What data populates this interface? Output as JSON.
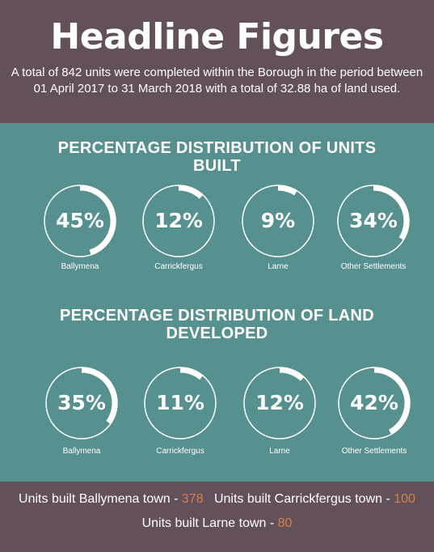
{
  "header": {
    "title": "Headline Figures",
    "summary": "A total of 842 units were completed within the Borough in the period between 01 April 2017 to 31 March 2018 with a total of 32.88 ha of land used."
  },
  "units_section": {
    "title": "PERCENTAGE DISTRIBUTION OF UNITS BUILT",
    "items": [
      {
        "label": "Ballymena",
        "value": 45,
        "text": "45%"
      },
      {
        "label": "Carrickfergus",
        "value": 12,
        "text": "12%"
      },
      {
        "label": "Larne",
        "value": 9,
        "text": "9%"
      },
      {
        "label": "Other Settlements",
        "value": 34,
        "text": "34%"
      }
    ]
  },
  "land_section": {
    "title": "PERCENTAGE DISTRIBUTION OF LAND DEVELOPED",
    "items": [
      {
        "label": "Ballymena",
        "value": 35,
        "text": "35%"
      },
      {
        "label": "Carrickfergus",
        "value": 11,
        "text": "11%"
      },
      {
        "label": "Larne",
        "value": 12,
        "text": "12%"
      },
      {
        "label": "Other Settlements",
        "value": 42,
        "text": "42%"
      }
    ]
  },
  "footer": {
    "ballymena_label": "Units built Ballymena town - ",
    "ballymena_value": "378",
    "carrick_label": "Units built Carrickfergus town - ",
    "carrick_value": "100",
    "larne_label": "Units built Larne town - ",
    "larne_value": "80"
  },
  "colors": {
    "header_bg": "#62505a",
    "panel_bg": "#56908f",
    "accent_value": "#d9804a",
    "ring": "#ffffff"
  }
}
